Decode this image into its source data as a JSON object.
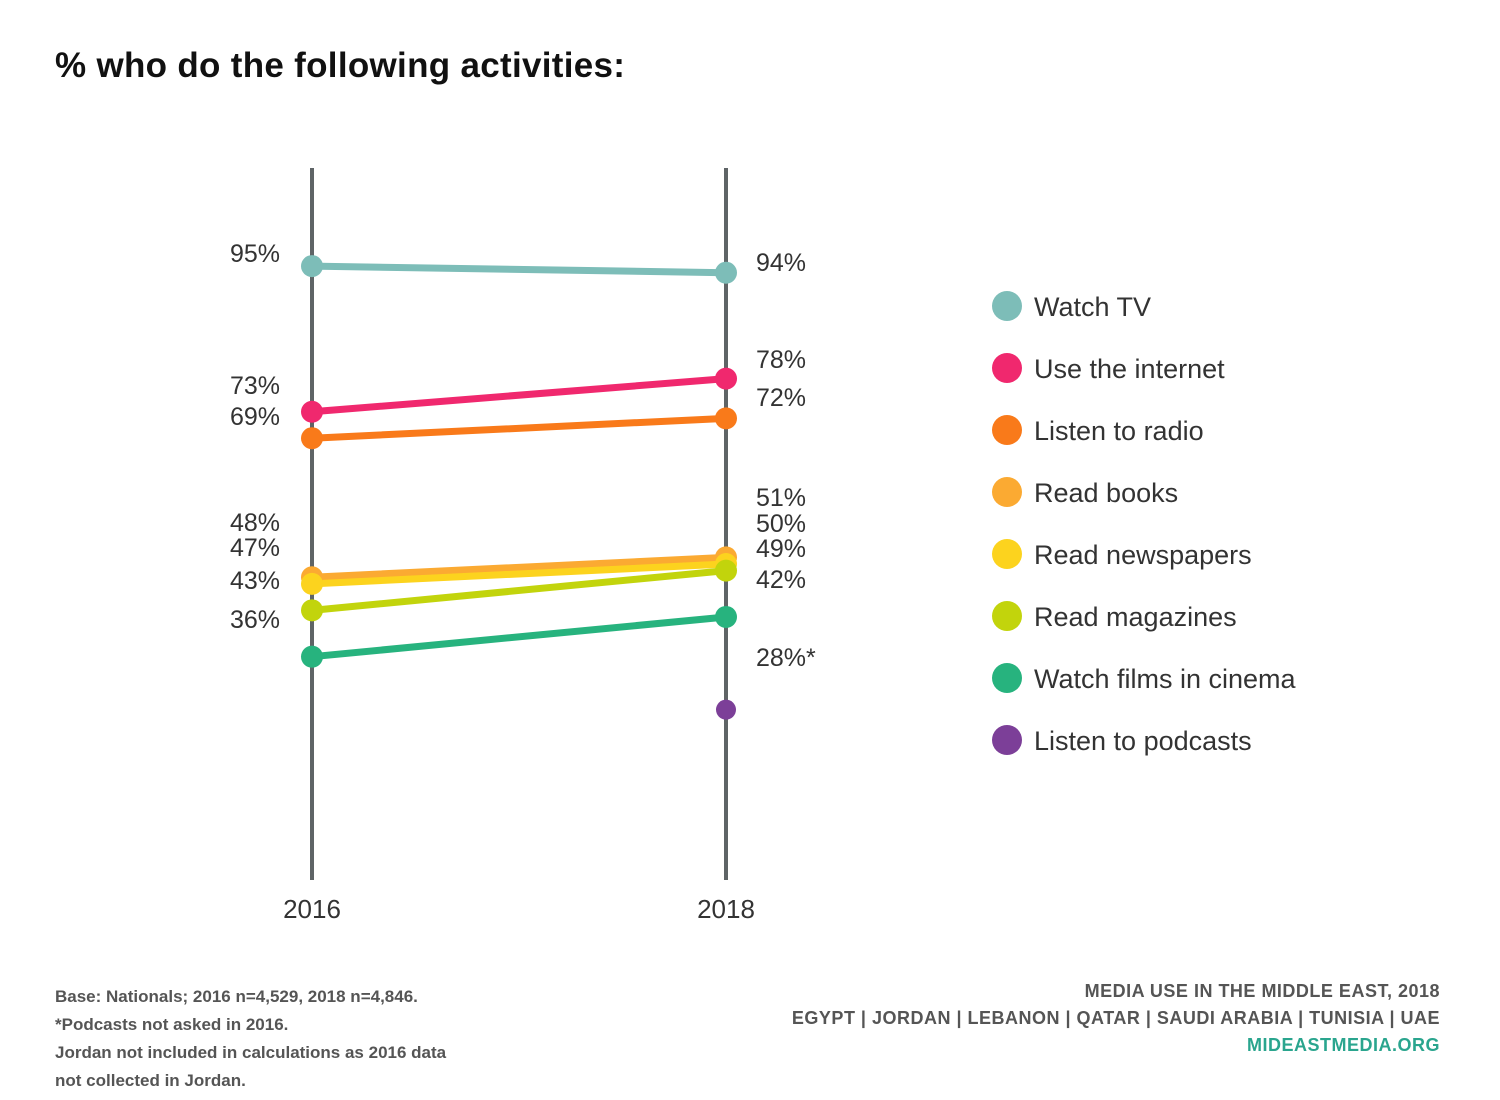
{
  "chart_data": {
    "type": "line",
    "title": "% who do the following activities:",
    "x": [
      "2016",
      "2018"
    ],
    "ylim": [
      0,
      100
    ],
    "series": [
      {
        "name": "Watch TV",
        "color": "#7dbdb8",
        "values": [
          95,
          94
        ],
        "labels": [
          "95%",
          "94%"
        ]
      },
      {
        "name": "Use the internet",
        "color": "#f0286e",
        "values": [
          73,
          78
        ],
        "labels": [
          "73%",
          "78%"
        ]
      },
      {
        "name": "Listen to radio",
        "color": "#f97a1a",
        "values": [
          69,
          72
        ],
        "labels": [
          "69%",
          "72%"
        ]
      },
      {
        "name": "Read books",
        "color": "#fbaa32",
        "values": [
          48,
          51
        ],
        "labels": [
          "48%",
          "51%"
        ]
      },
      {
        "name": "Read newspapers",
        "color": "#fcd31e",
        "values": [
          47,
          50
        ],
        "labels": [
          "47%",
          "50%"
        ]
      },
      {
        "name": "Read magazines",
        "color": "#c2d40c",
        "values": [
          43,
          49
        ],
        "labels": [
          "43%",
          "49%"
        ]
      },
      {
        "name": "Watch films in cinema",
        "color": "#27b37e",
        "values": [
          36,
          42
        ],
        "labels": [
          "36%",
          "42%"
        ]
      },
      {
        "name": "Listen to podcasts",
        "color": "#7c3f98",
        "values": [
          null,
          28
        ],
        "labels": [
          null,
          "28%*"
        ]
      }
    ],
    "legend_position": "right"
  },
  "footer": {
    "notes": [
      "Base: Nationals; 2016 n=4,529, 2018 n=4,846.",
      "*Podcasts not asked in 2016.",
      "Jordan not included in calculations as 2016 data",
      "not collected in Jordan."
    ],
    "source_title": "MEDIA USE IN THE MIDDLE EAST, 2018",
    "countries": "EGYPT | JORDAN | LEBANON | QATAR | SAUDI ARABIA | TUNISIA | UAE",
    "url": "MIDEASTMEDIA.ORG"
  }
}
